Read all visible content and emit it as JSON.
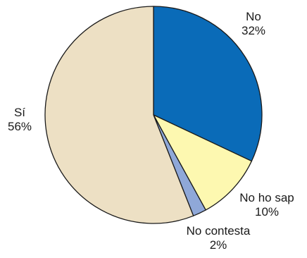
{
  "chart_data": {
    "type": "pie",
    "title": "",
    "start_angle_deg": 0,
    "direction": "clockwise",
    "slices": [
      {
        "key": "no",
        "label": "No",
        "value": 32,
        "value_label": "32%",
        "color": "#0a6bb8"
      },
      {
        "key": "nohosap",
        "label": "No ho sap",
        "value": 10,
        "value_label": "10%",
        "color": "#fdf8b0"
      },
      {
        "key": "nocontesta",
        "label": "No contesta",
        "value": 2,
        "value_label": "2%",
        "color": "#8fa8d8"
      },
      {
        "key": "si",
        "label": "Sí",
        "value": 56,
        "value_label": "56%",
        "color": "#ede0c4"
      }
    ],
    "stroke_color": "#1a1a1a",
    "legend": "none"
  }
}
